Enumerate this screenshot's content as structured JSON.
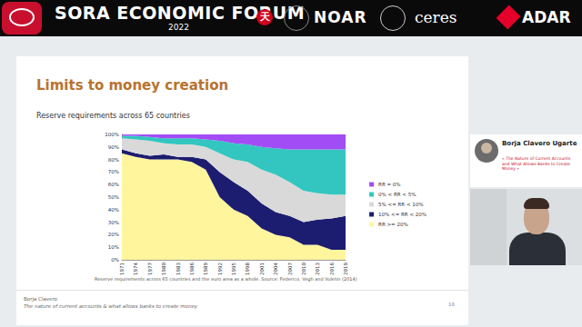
{
  "header": {
    "title": "SORA ECONOMIC FORUM",
    "year": "2022",
    "icon": "天",
    "logos": [
      "NOAR",
      "ceres",
      "ADAR"
    ]
  },
  "slide": {
    "title": "Limits to money creation",
    "subtitle": "Reserve requirements across 65 countries",
    "caption": "Reserve requirements across 65 countries and the euro area as a whole. Source: Federico, Vegh and Vuletin (2014)",
    "footer_author": "Borja Clavero",
    "footer_title": "The nature of current accounts & what allows banks to create money",
    "page": "18"
  },
  "speaker": {
    "name": "Borja Clavero Ugarte",
    "talk": "« The Nature of Current Accounts and What Allows Banks to Create Money »"
  },
  "chart_data": {
    "type": "area",
    "stacked": true,
    "grid": false,
    "legend": "right",
    "categories": [
      "1971",
      "1974",
      "1977",
      "1980",
      "1983",
      "1986",
      "1989",
      "1992",
      "1995",
      "1998",
      "2001",
      "2004",
      "2007",
      "2010",
      "2013",
      "2016",
      "2019"
    ],
    "ylim": [
      0,
      100
    ],
    "yticks": [
      {
        "value": 0,
        "label": "0%"
      },
      {
        "value": 10,
        "label": "10%"
      },
      {
        "value": 20,
        "label": "20%"
      },
      {
        "value": 30,
        "label": "30%"
      },
      {
        "value": 40,
        "label": "40%"
      },
      {
        "value": 50,
        "label": "50%"
      },
      {
        "value": 60,
        "label": "60%"
      },
      {
        "value": 70,
        "label": "70%"
      },
      {
        "value": 80,
        "label": "80%"
      },
      {
        "value": 90,
        "label": "90%"
      },
      {
        "value": 100,
        "label": "100%"
      }
    ],
    "series": [
      {
        "name": "RR >= 20%",
        "color": "#fff59d",
        "values": [
          85,
          82,
          80,
          80,
          80,
          78,
          72,
          50,
          40,
          35,
          25,
          20,
          18,
          12,
          12,
          8,
          8
        ]
      },
      {
        "name": "10% <= RR < 20%",
        "color": "#1c1c70",
        "values": [
          3,
          3,
          3,
          4,
          2,
          4,
          8,
          20,
          22,
          20,
          20,
          18,
          17,
          18,
          20,
          25,
          27
        ]
      },
      {
        "name": "5% <= RR < 10%",
        "color": "#d9d9d9",
        "values": [
          9,
          11,
          12,
          9,
          10,
          10,
          10,
          15,
          18,
          23,
          27,
          30,
          27,
          25,
          21,
          19,
          17
        ]
      },
      {
        "name": "0% < RR < 5%",
        "color": "#33c6c0",
        "values": [
          2,
          3,
          3,
          4,
          5,
          5,
          6,
          10,
          13,
          14,
          18,
          21,
          26,
          33,
          35,
          36,
          36
        ]
      },
      {
        "name": "RR = 0%",
        "color": "#a24cf5",
        "values": [
          1,
          1,
          2,
          3,
          3,
          3,
          4,
          5,
          7,
          8,
          10,
          11,
          12,
          12,
          12,
          12,
          12
        ]
      }
    ]
  }
}
